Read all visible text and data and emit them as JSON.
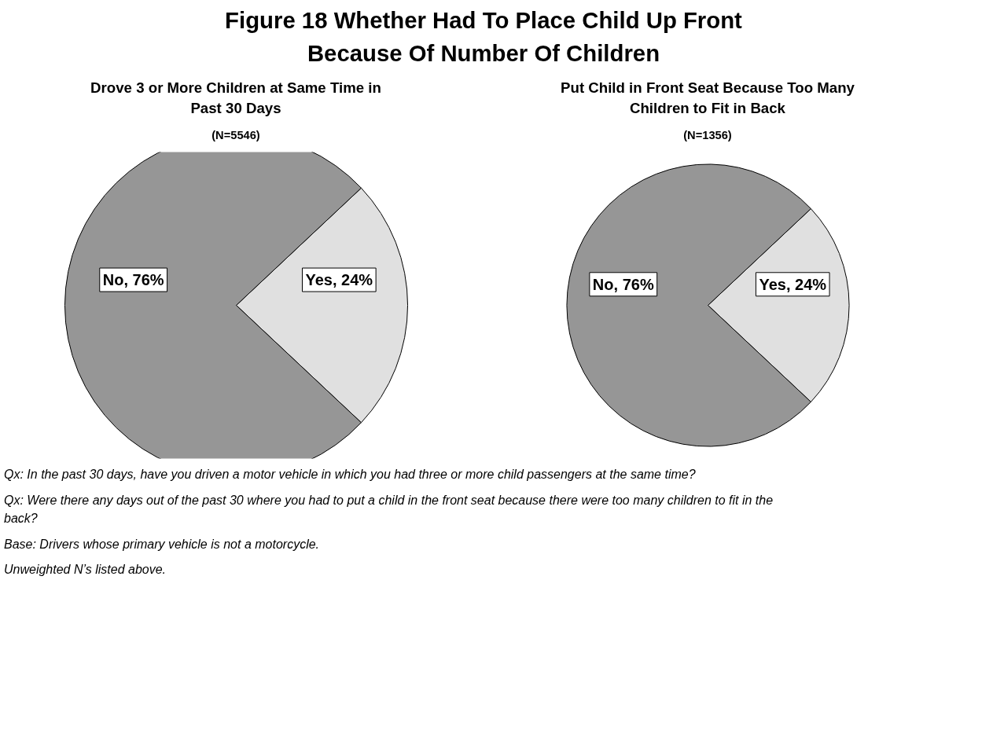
{
  "chart_data": [
    {
      "type": "pie",
      "title": "Figure 18 Whether Had To Place Child Up Front Because Of Number Of Children",
      "subtitle": "Drove 3 or More Children at Same Time in Past 30 Days",
      "annotations": [
        "(N=5546)"
      ],
      "categories": [
        "No",
        "Yes"
      ],
      "values": [
        76,
        24
      ],
      "colors": [
        "#969696",
        "#e0e0e0"
      ],
      "value_labels": [
        "76%",
        "24%"
      ]
    },
    {
      "type": "pie",
      "subtitle": "Put Child in Front Seat Because Too Many Children to Fit in Back",
      "annotations": [
        "(N=1356)",
        "Qx:  In the past 30 days, have you driven a motor vehicle in which you had three or more child passengers at the same time?",
        "Qx:  Were there any days out of the past 30 where you had to put a child in the front seat because there were too many children to fit in the back?",
        "Base:  Drivers whose primary vehicle is not a motorcycle.",
        "Unweighted N’s listed above."
      ],
      "categories": [
        "No",
        "Yes"
      ],
      "values": [
        76,
        24
      ],
      "colors": [
        "#969696",
        "#e0e0e0"
      ],
      "value_labels": [
        "76%",
        "24%"
      ]
    }
  ]
}
